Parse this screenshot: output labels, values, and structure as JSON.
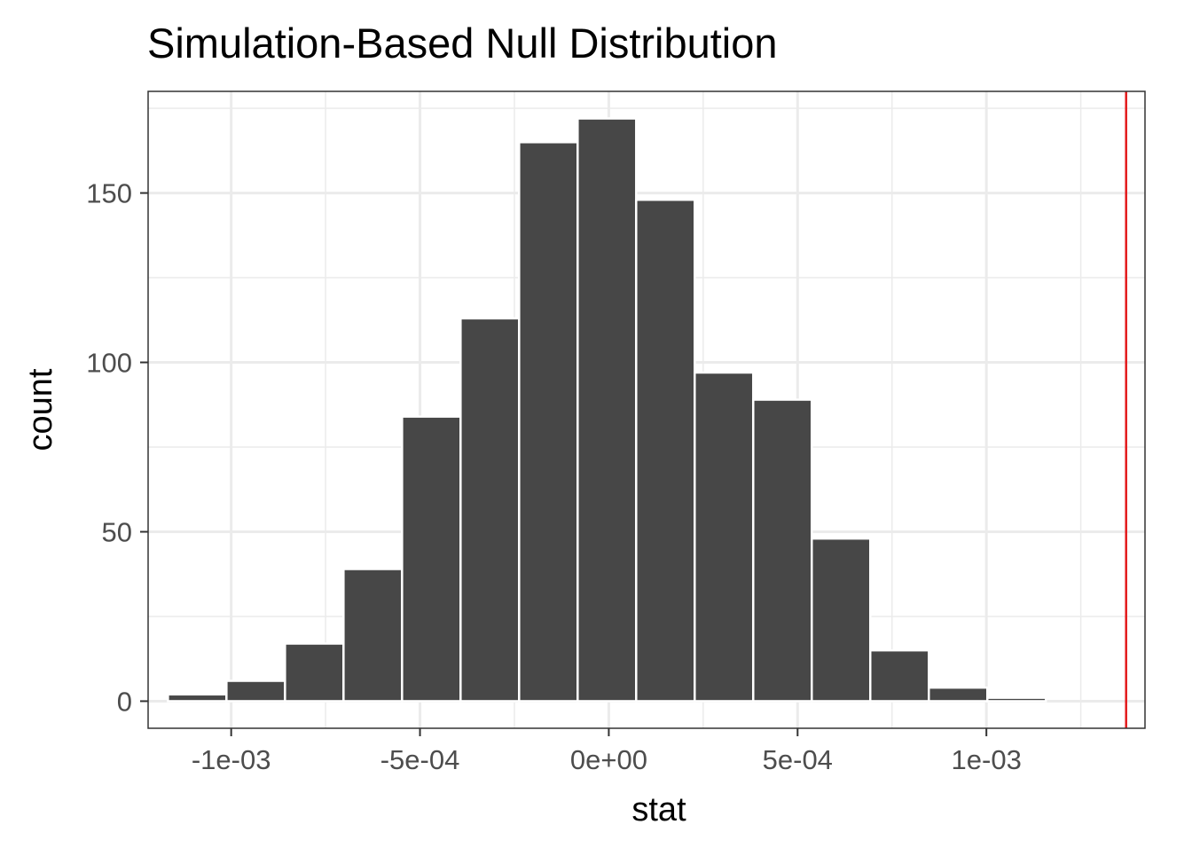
{
  "chart_data": {
    "type": "bar",
    "subtype": "histogram",
    "title": "Simulation-Based Null Distribution",
    "xlabel": "stat",
    "ylabel": "count",
    "xlim": [
      -0.00122,
      0.00142
    ],
    "ylim": [
      -8,
      180
    ],
    "x_ticks": [
      {
        "value": -0.001,
        "label": "-1e-03"
      },
      {
        "value": -0.0005,
        "label": "-5e-04"
      },
      {
        "value": 0,
        "label": "0e+00"
      },
      {
        "value": 0.0005,
        "label": "5e-04"
      },
      {
        "value": 0.001,
        "label": "1e-03"
      }
    ],
    "y_ticks": [
      {
        "value": 0,
        "label": "0"
      },
      {
        "value": 50,
        "label": "50"
      },
      {
        "value": 100,
        "label": "100"
      },
      {
        "value": 150,
        "label": "150"
      }
    ],
    "bin_width": 0.000155,
    "bins": [
      {
        "center": -0.00109,
        "count": 2
      },
      {
        "center": -0.000935,
        "count": 6
      },
      {
        "center": -0.00078,
        "count": 17
      },
      {
        "center": -0.000625,
        "count": 39
      },
      {
        "center": -0.00047,
        "count": 84
      },
      {
        "center": -0.000315,
        "count": 113
      },
      {
        "center": -0.00016,
        "count": 165
      },
      {
        "center": -5e-06,
        "count": 172
      },
      {
        "center": 0.00015,
        "count": 148
      },
      {
        "center": 0.000305,
        "count": 97
      },
      {
        "center": 0.00046,
        "count": 89
      },
      {
        "center": 0.000615,
        "count": 48
      },
      {
        "center": 0.00077,
        "count": 15
      },
      {
        "center": 0.000925,
        "count": 4
      },
      {
        "center": 0.00108,
        "count": 1
      }
    ],
    "observed_stat": 0.00137,
    "grid": true,
    "legend": "none",
    "colors": {
      "bar_fill": "#474747",
      "bar_outline": "#ffffff",
      "observed_line": "#e31a1c",
      "grid": "#ebebeb",
      "panel_border": "#333333"
    }
  }
}
